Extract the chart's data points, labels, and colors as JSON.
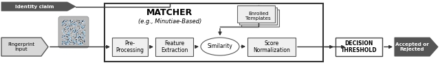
{
  "fig_bg": "#ffffff",
  "identity_claim_text": "Identity claim",
  "identity_claim_fc": "#555555",
  "fingerprint_input_text": "Fingerprint\nInput",
  "fingerprint_box_fc": "#d8d8d8",
  "fingerprint_box_ec": "#555555",
  "matcher_box_fc": "#ffffff",
  "matcher_box_ec": "#333333",
  "matcher_title": "MATCHER",
  "matcher_subtitle": "(e.g., Minutiae-Based)",
  "enrolled_text": "Enrolled\nTemplates",
  "enrolled_fc": "#f0f0f0",
  "enrolled_ec": "#666666",
  "preprocessing_text": "Pre-\nProcessing",
  "feature_text": "Feature\nExtraction",
  "similarity_text": "Similarity",
  "score_text": "Score\nNormalization",
  "inner_box_fc": "#f0f0f0",
  "inner_box_ec": "#555555",
  "decision_text": "DECISION\nTHRESHOLD",
  "decision_box_fc": "#ffffff",
  "decision_box_ec": "#444444",
  "accepted_text": "Accepted or\nRejected",
  "accepted_box_fc": "#555555",
  "accepted_text_color": "#ffffff",
  "arrow_color": "#333333",
  "line_color": "#333333"
}
